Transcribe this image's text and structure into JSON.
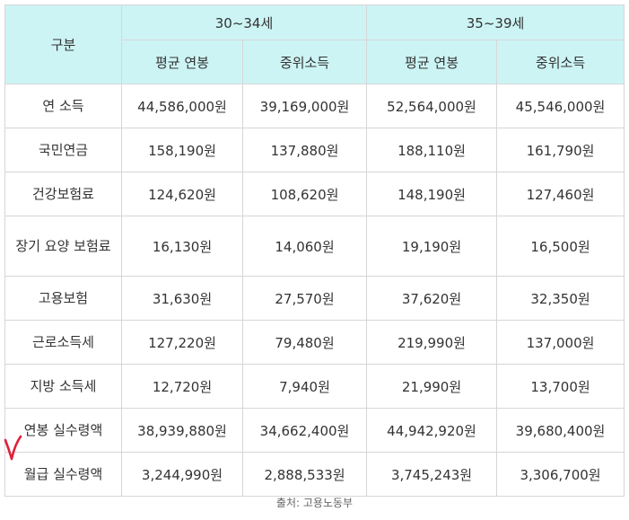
{
  "table": {
    "corner_header": "구분",
    "age_groups": [
      "30~34세",
      "35~39세"
    ],
    "sub_headers": [
      "평균 연봉",
      "중위소득",
      "평균 연봉",
      "중위소득"
    ],
    "rows": [
      {
        "label": "연 소득",
        "values": [
          "44,586,000원",
          "39,169,000원",
          "52,564,000원",
          "45,546,000원"
        ]
      },
      {
        "label": "국민연금",
        "values": [
          "158,190원",
          "137,880원",
          "188,110원",
          "161,790원"
        ]
      },
      {
        "label": "건강보험료",
        "values": [
          "124,620원",
          "108,620원",
          "148,190원",
          "127,460원"
        ]
      },
      {
        "label": "장기 요양 보험료",
        "values": [
          "16,130원",
          "14,060원",
          "19,190원",
          "16,500원"
        ]
      },
      {
        "label": "고용보험",
        "values": [
          "31,630원",
          "27,570원",
          "37,620원",
          "32,350원"
        ]
      },
      {
        "label": "근로소득세",
        "values": [
          "127,220원",
          "79,480원",
          "219,990원",
          "137,000원"
        ]
      },
      {
        "label": "지방 소득세",
        "values": [
          "12,720원",
          "7,940원",
          "21,990원",
          "13,700원"
        ]
      },
      {
        "label": "연봉 실수령액",
        "values": [
          "38,939,880원",
          "34,662,400원",
          "44,942,920원",
          "39,680,400원"
        ]
      },
      {
        "label": "월급 실수령액",
        "values": [
          "3,244,990원",
          "2,888,533원",
          "3,745,243원",
          "3,306,700원"
        ]
      }
    ]
  },
  "source": "출처: 고용노동부",
  "colors": {
    "header_bg": "#cdf4f5",
    "border": "#d6d6d6",
    "check_mark": "#e0203a"
  },
  "check_mark_icon": "handwritten-check-icon"
}
